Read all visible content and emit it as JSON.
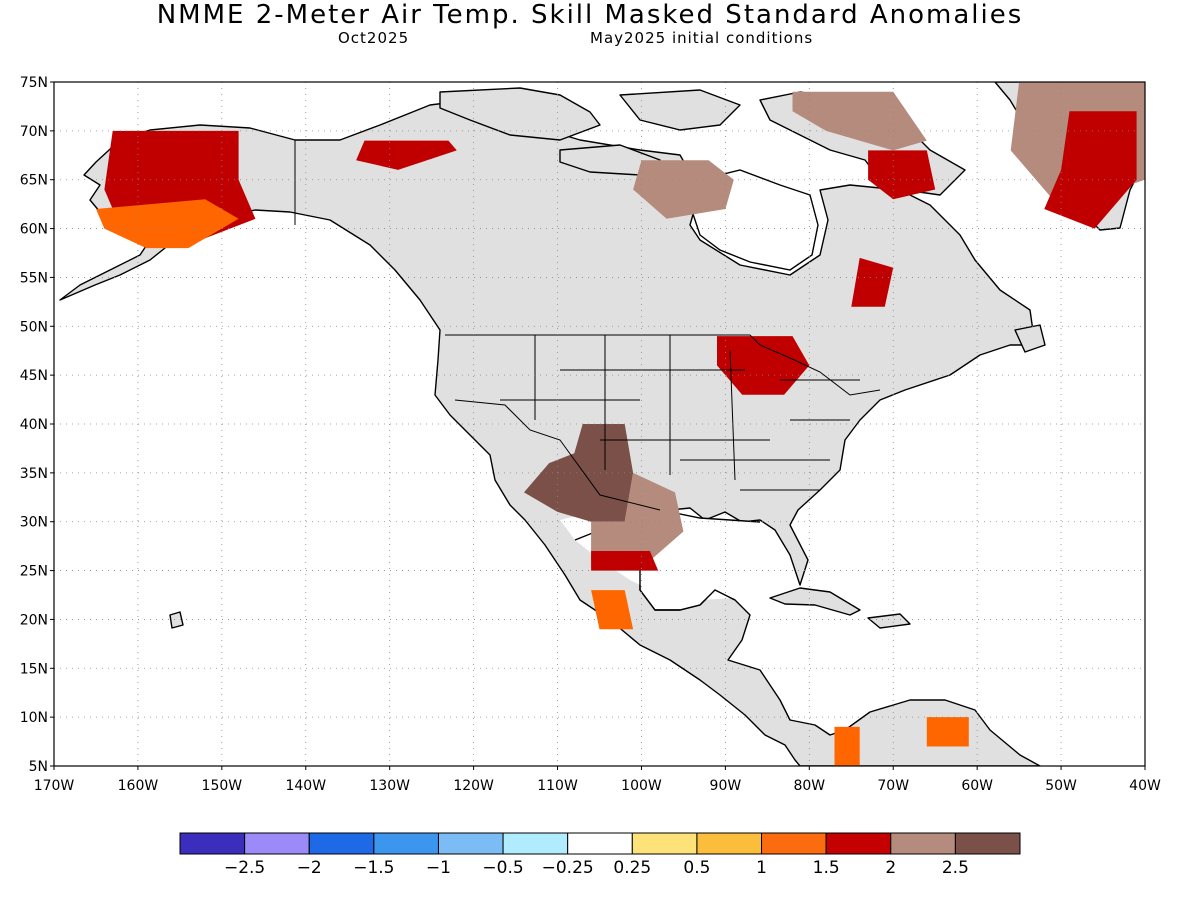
{
  "title": "NMME 2-Meter Air Temp. Skill Masked Standard Anomalies",
  "subtitle_left": "Oct2025",
  "subtitle_right": "May2025 initial conditions",
  "map": {
    "lon_range": [
      -170,
      -40
    ],
    "lat_range": [
      5,
      75
    ],
    "grid": "dotted",
    "lat_ticks": [
      {
        "value": 75,
        "label": "75N"
      },
      {
        "value": 70,
        "label": "70N"
      },
      {
        "value": 65,
        "label": "65N"
      },
      {
        "value": 60,
        "label": "60N"
      },
      {
        "value": 55,
        "label": "55N"
      },
      {
        "value": 50,
        "label": "50N"
      },
      {
        "value": 45,
        "label": "45N"
      },
      {
        "value": 40,
        "label": "40N"
      },
      {
        "value": 35,
        "label": "35N"
      },
      {
        "value": 30,
        "label": "30N"
      },
      {
        "value": 25,
        "label": "25N"
      },
      {
        "value": 20,
        "label": "20N"
      },
      {
        "value": 15,
        "label": "15N"
      },
      {
        "value": 10,
        "label": "10N"
      },
      {
        "value": 5,
        "label": "5N"
      }
    ],
    "lon_ticks": [
      {
        "value": -170,
        "label": "170W"
      },
      {
        "value": -160,
        "label": "160W"
      },
      {
        "value": -150,
        "label": "150W"
      },
      {
        "value": -140,
        "label": "140W"
      },
      {
        "value": -130,
        "label": "130W"
      },
      {
        "value": -120,
        "label": "120W"
      },
      {
        "value": -110,
        "label": "110W"
      },
      {
        "value": -100,
        "label": "100W"
      },
      {
        "value": -90,
        "label": "90W"
      },
      {
        "value": -80,
        "label": "80W"
      },
      {
        "value": -70,
        "label": "70W"
      },
      {
        "value": -60,
        "label": "60W"
      },
      {
        "value": -50,
        "label": "50W"
      },
      {
        "value": -40,
        "label": "40W"
      }
    ],
    "land_color": "#e0e0e0",
    "anomaly_regions": [
      {
        "name": "alaska",
        "category": "2",
        "color": "#c00000",
        "points": [
          [
            -163,
            70
          ],
          [
            -148,
            70
          ],
          [
            -148,
            65
          ],
          [
            -146,
            61
          ],
          [
            -152,
            59
          ],
          [
            -158,
            58
          ],
          [
            -162,
            60
          ],
          [
            -164,
            64
          ]
        ]
      },
      {
        "name": "alaska-south",
        "category": "1.5",
        "color": "#ff6600",
        "points": [
          [
            -165,
            62
          ],
          [
            -152,
            63
          ],
          [
            -148,
            61
          ],
          [
            -154,
            58
          ],
          [
            -159,
            58
          ],
          [
            -164,
            60
          ]
        ]
      },
      {
        "name": "yukon-north",
        "category": "2",
        "color": "#c00000",
        "points": [
          [
            -133,
            69
          ],
          [
            -123,
            69
          ],
          [
            -122,
            68
          ],
          [
            -129,
            66
          ],
          [
            -134,
            67
          ]
        ]
      },
      {
        "name": "hudson-bay-north",
        "category": "2.5+",
        "color": "#b58b7d",
        "points": [
          [
            -100,
            67
          ],
          [
            -92,
            67
          ],
          [
            -89,
            65
          ],
          [
            -90,
            62
          ],
          [
            -97,
            61
          ],
          [
            -101,
            64
          ]
        ]
      },
      {
        "name": "baffin",
        "category": "2.5+",
        "color": "#b58b7d",
        "points": [
          [
            -82,
            74
          ],
          [
            -70,
            74
          ],
          [
            -66,
            69
          ],
          [
            -70,
            68
          ],
          [
            -78,
            70
          ],
          [
            -82,
            72
          ]
        ]
      },
      {
        "name": "baffin-south",
        "category": "2",
        "color": "#c00000",
        "points": [
          [
            -73,
            68
          ],
          [
            -66,
            68
          ],
          [
            -65,
            64
          ],
          [
            -70,
            63
          ],
          [
            -73,
            65
          ]
        ]
      },
      {
        "name": "greenland",
        "category": "2.5+",
        "color": "#b58b7d",
        "points": [
          [
            -55,
            75
          ],
          [
            -40,
            75
          ],
          [
            -40,
            65
          ],
          [
            -50,
            62
          ],
          [
            -56,
            68
          ]
        ]
      },
      {
        "name": "greenland-red",
        "category": "2",
        "color": "#c00000",
        "points": [
          [
            -49,
            72
          ],
          [
            -41,
            72
          ],
          [
            -41,
            65
          ],
          [
            -46,
            60
          ],
          [
            -52,
            62
          ],
          [
            -50,
            66
          ]
        ]
      },
      {
        "name": "labrador",
        "category": "2",
        "color": "#c00000",
        "points": [
          [
            -74,
            57
          ],
          [
            -70,
            56
          ],
          [
            -71,
            52
          ],
          [
            -75,
            52
          ]
        ]
      },
      {
        "name": "great-lakes",
        "category": "2",
        "color": "#c00000",
        "points": [
          [
            -91,
            49
          ],
          [
            -82,
            49
          ],
          [
            -80,
            46
          ],
          [
            -83,
            43
          ],
          [
            -88,
            43
          ],
          [
            -91,
            46
          ]
        ]
      },
      {
        "name": "southwest",
        "category": ">2.5",
        "color": "#7a5048",
        "points": [
          [
            -107,
            40
          ],
          [
            -102,
            40
          ],
          [
            -101,
            35
          ],
          [
            -102,
            30
          ],
          [
            -106,
            30
          ],
          [
            -110,
            31
          ],
          [
            -114,
            33
          ],
          [
            -111,
            36
          ],
          [
            -108,
            37
          ]
        ]
      },
      {
        "name": "texas",
        "category": "2.5+",
        "color": "#b58b7d",
        "points": [
          [
            -101,
            35
          ],
          [
            -96,
            33
          ],
          [
            -95,
            29
          ],
          [
            -99,
            26
          ],
          [
            -106,
            26
          ],
          [
            -106,
            30
          ],
          [
            -102,
            30
          ]
        ]
      },
      {
        "name": "tamaulipas",
        "category": "2",
        "color": "#c00000",
        "points": [
          [
            -106,
            27
          ],
          [
            -99,
            27
          ],
          [
            -98,
            25
          ],
          [
            -106,
            25
          ]
        ]
      },
      {
        "name": "mexico-west",
        "category": "1.5",
        "color": "#ff6600",
        "points": [
          [
            -106,
            23
          ],
          [
            -102,
            23
          ],
          [
            -101,
            19
          ],
          [
            -105,
            19
          ]
        ]
      },
      {
        "name": "venezuela",
        "category": "1.5",
        "color": "#ff6600",
        "points": [
          [
            -66,
            10
          ],
          [
            -61,
            10
          ],
          [
            -61,
            7
          ],
          [
            -66,
            7
          ]
        ]
      },
      {
        "name": "colombia",
        "category": "1.5",
        "color": "#ff6600",
        "points": [
          [
            -77,
            9
          ],
          [
            -74,
            9
          ],
          [
            -74,
            5
          ],
          [
            -77,
            5
          ]
        ]
      }
    ]
  },
  "colorbar": {
    "colors": [
      "#3b2ebd",
      "#9b8af7",
      "#1e6ae6",
      "#3d96ee",
      "#7cbcf5",
      "#b0ecfd",
      "#ffffff",
      "#fde27a",
      "#fbbd3c",
      "#fb6b10",
      "#c40000",
      "#b58b7d",
      "#7a5048"
    ],
    "labels": [
      "-2.5",
      "-2",
      "-1.5",
      "-1",
      "-0.5",
      "-0.25",
      "0.25",
      "0.5",
      "1",
      "1.5",
      "2",
      "2.5"
    ]
  }
}
